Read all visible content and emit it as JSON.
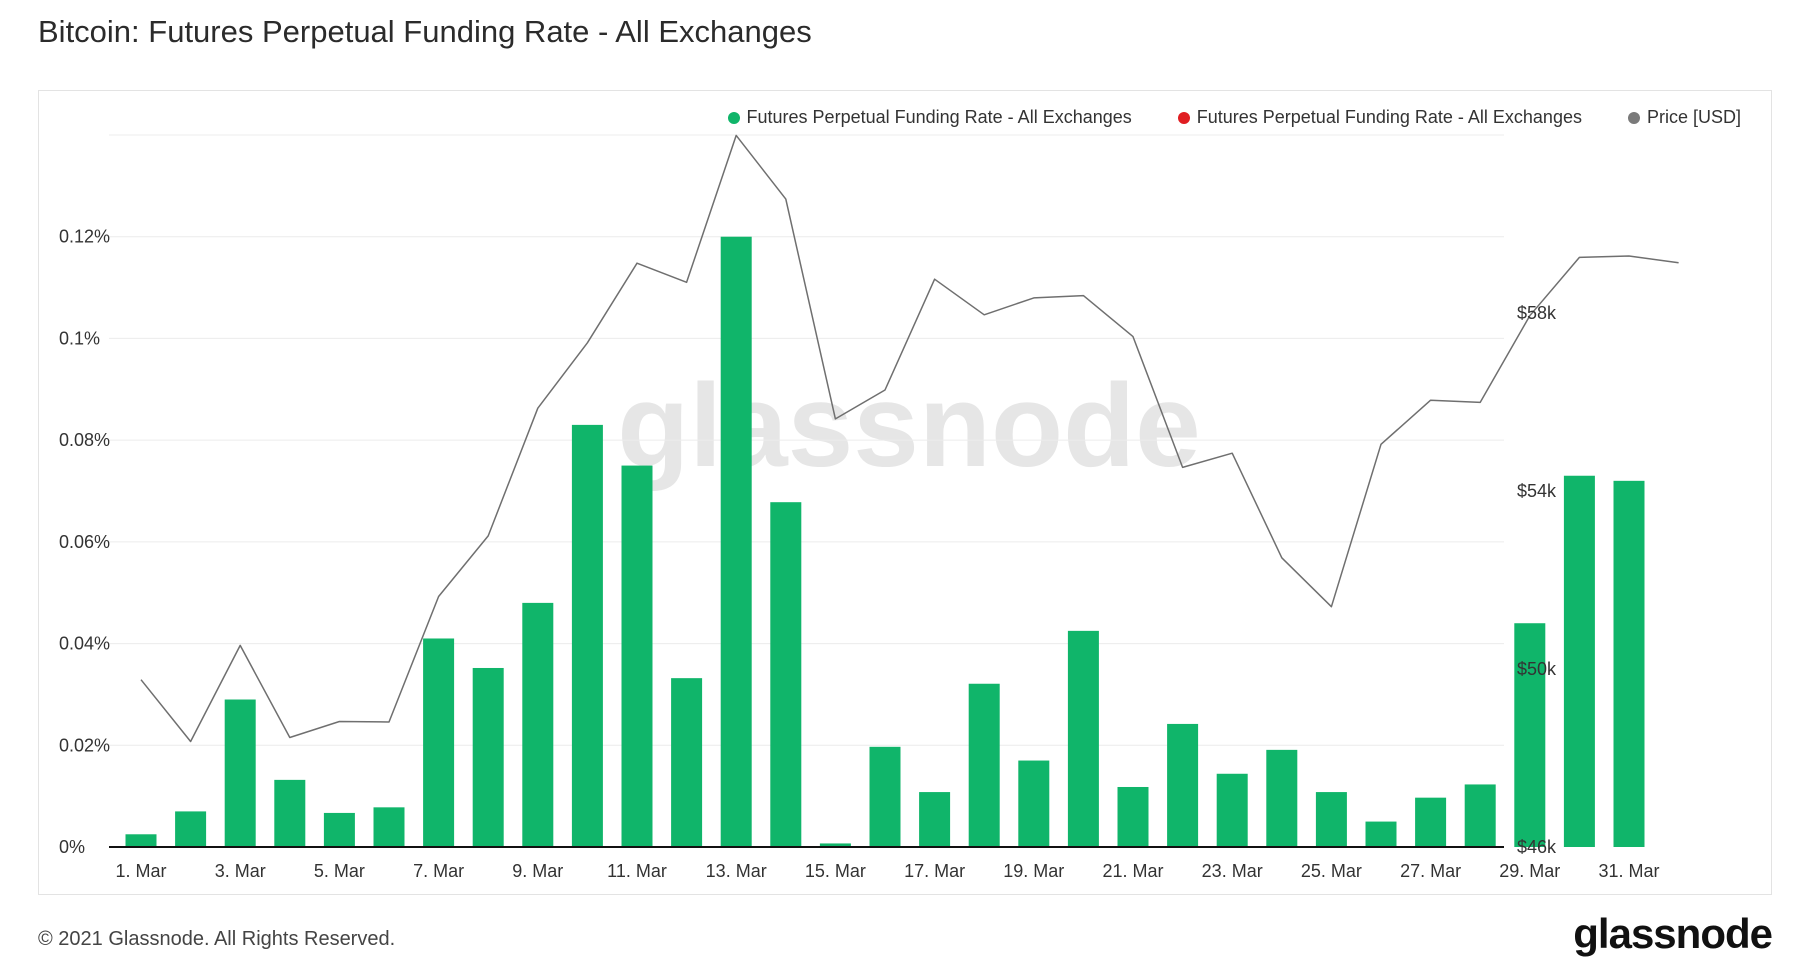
{
  "header": {
    "title": "Bitcoin: Futures Perpetual Funding Rate - All Exchanges"
  },
  "footer": {
    "copyright": "© 2021 Glassnode. All Rights Reserved.",
    "logo": "glassnode"
  },
  "watermark": "glassnode",
  "colors": {
    "bar": "#10b56a",
    "negative": "#e01e22",
    "price": "#6f6f6f",
    "grid": "#ececec",
    "axis": "#111111"
  },
  "chart_data": {
    "type": "bar",
    "title": "Bitcoin: Futures Perpetual Funding Rate - All Exchanges",
    "legend_placement": "top-right",
    "legend": [
      {
        "label": "Futures Perpetual Funding Rate - All Exchanges",
        "color": "#10b56a"
      },
      {
        "label": "Futures Perpetual Funding Rate - All Exchanges",
        "color": "#e01e22"
      },
      {
        "label": "Price [USD]",
        "color": "#7a7a7a"
      }
    ],
    "x_tick_labels": [
      "1. Mar",
      "3. Mar",
      "5. Mar",
      "7. Mar",
      "9. Mar",
      "11. Mar",
      "13. Mar",
      "15. Mar",
      "17. Mar",
      "19. Mar",
      "21. Mar",
      "23. Mar",
      "25. Mar",
      "27. Mar",
      "29. Mar",
      "31. Mar"
    ],
    "x_tick_days": [
      1,
      3,
      5,
      7,
      9,
      11,
      13,
      15,
      17,
      19,
      21,
      23,
      25,
      27,
      29,
      31
    ],
    "y_left": {
      "ticks": [
        0,
        0.02,
        0.04,
        0.06,
        0.08,
        0.1,
        0.12
      ],
      "tick_labels": [
        "0%",
        "0.02%",
        "0.04%",
        "0.06%",
        "0.08%",
        "0.1%",
        "0.12%"
      ],
      "range": [
        0,
        0.14
      ]
    },
    "y_right": {
      "ticks": [
        46000,
        50000,
        54000,
        58000
      ],
      "tick_labels": [
        "$46k",
        "$50k",
        "$54k",
        "$58k"
      ],
      "range": [
        46000,
        62000
      ],
      "scale": "linear"
    },
    "grid": true,
    "series": [
      {
        "name": "Futures Perpetual Funding Rate - All Exchanges",
        "kind": "bar",
        "axis": "left",
        "days": [
          1,
          2,
          3,
          4,
          5,
          6,
          7,
          8,
          9,
          10,
          11,
          12,
          13,
          14,
          15,
          16,
          17,
          18,
          19,
          20,
          21,
          22,
          23,
          24,
          25,
          26,
          27,
          28,
          29,
          30,
          31
        ],
        "values": [
          0.0025,
          0.007,
          0.029,
          0.0132,
          0.0067,
          0.0078,
          0.041,
          0.0352,
          0.048,
          0.083,
          0.075,
          0.0332,
          0.12,
          0.0678,
          0.0007,
          0.0197,
          0.0108,
          0.0321,
          0.017,
          0.0425,
          0.0118,
          0.0242,
          0.0144,
          0.0191,
          0.0108,
          0.005,
          0.0097,
          0.0123,
          0.044,
          0.073,
          0.072
        ]
      },
      {
        "name": "Price [USD]",
        "kind": "line",
        "axis": "right",
        "days": [
          1,
          2,
          3,
          4,
          5,
          6,
          7,
          8,
          9,
          10,
          11,
          12,
          13,
          14,
          15,
          16,
          17,
          18,
          19,
          20,
          21,
          22,
          23,
          24,
          25,
          26,
          27,
          28,
          29,
          30,
          31,
          32
        ],
        "values": [
          49760,
          48370,
          50530,
          48460,
          48820,
          48810,
          51630,
          52990,
          55860,
          57330,
          59120,
          58690,
          61990,
          60560,
          55620,
          56270,
          58760,
          57960,
          58340,
          58390,
          57470,
          54530,
          54850,
          52500,
          51400,
          55050,
          56040,
          55990,
          57940,
          59250,
          59280,
          59130
        ]
      }
    ]
  }
}
